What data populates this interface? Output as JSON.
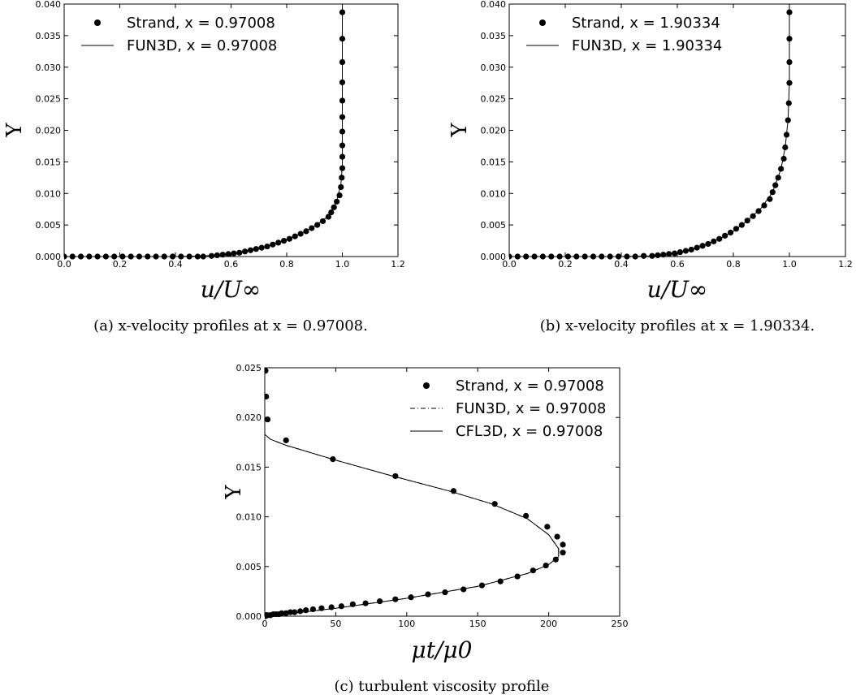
{
  "chart_data": [
    {
      "id": "a",
      "type": "scatter",
      "xlabel": "u/U∞",
      "ylabel": "Y",
      "xlim": [
        0,
        1.2
      ],
      "ylim": [
        0,
        0.04
      ],
      "xticks": [
        "0.0",
        "0.2",
        "0.4",
        "0.6",
        "0.8",
        "1.0",
        "1.2"
      ],
      "yticks": [
        "0.000",
        "0.005",
        "0.010",
        "0.015",
        "0.020",
        "0.025",
        "0.030",
        "0.035",
        "0.040"
      ],
      "legend_position": "top-left",
      "caption": "(a) x-velocity profiles at x = 0.97008.",
      "series": [
        {
          "name": "Strand, x = 0.97008",
          "style": "markers",
          "points": [
            [
              0.0,
              0.0
            ],
            [
              0.03,
              0.0
            ],
            [
              0.06,
              0.0
            ],
            [
              0.09,
              0.0
            ],
            [
              0.12,
              0.0
            ],
            [
              0.15,
              0.0
            ],
            [
              0.18,
              0.0
            ],
            [
              0.21,
              0.0
            ],
            [
              0.24,
              0.0
            ],
            [
              0.27,
              0.0
            ],
            [
              0.3,
              0.0
            ],
            [
              0.33,
              0.0
            ],
            [
              0.36,
              0.0
            ],
            [
              0.39,
              0.0
            ],
            [
              0.42,
              0.0
            ],
            [
              0.45,
              0.0
            ],
            [
              0.48,
              0.0
            ],
            [
              0.5,
              0.0
            ],
            [
              0.53,
              0.0001
            ],
            [
              0.55,
              0.0002
            ],
            [
              0.57,
              0.0003
            ],
            [
              0.59,
              0.0004
            ],
            [
              0.61,
              0.0005
            ],
            [
              0.63,
              0.0006
            ],
            [
              0.65,
              0.0008
            ],
            [
              0.67,
              0.001
            ],
            [
              0.69,
              0.0012
            ],
            [
              0.71,
              0.0014
            ],
            [
              0.73,
              0.0016
            ],
            [
              0.75,
              0.0019
            ],
            [
              0.77,
              0.0022
            ],
            [
              0.79,
              0.0025
            ],
            [
              0.81,
              0.0028
            ],
            [
              0.83,
              0.0032
            ],
            [
              0.85,
              0.0036
            ],
            [
              0.87,
              0.004
            ],
            [
              0.89,
              0.0045
            ],
            [
              0.91,
              0.005
            ],
            [
              0.93,
              0.0056
            ],
            [
              0.95,
              0.0063
            ],
            [
              0.96,
              0.007
            ],
            [
              0.97,
              0.0078
            ],
            [
              0.98,
              0.0087
            ],
            [
              0.99,
              0.0097
            ],
            [
              0.995,
              0.011
            ],
            [
              0.998,
              0.0125
            ],
            [
              1.0,
              0.014
            ],
            [
              1.0,
              0.0158
            ],
            [
              1.0,
              0.0176
            ],
            [
              1.0,
              0.0198
            ],
            [
              1.0,
              0.0221
            ],
            [
              1.0,
              0.0247
            ],
            [
              1.0,
              0.0276
            ],
            [
              1.0,
              0.0308
            ],
            [
              1.0,
              0.0345
            ],
            [
              1.0,
              0.0387
            ]
          ]
        },
        {
          "name": "FUN3D, x = 0.97008",
          "style": "solid",
          "points": [
            [
              0.0,
              0.0
            ],
            [
              0.4,
              0.0
            ],
            [
              0.5,
              0.0001
            ],
            [
              0.55,
              0.0002
            ],
            [
              0.6,
              0.0004
            ],
            [
              0.65,
              0.0008
            ],
            [
              0.7,
              0.0013
            ],
            [
              0.75,
              0.0019
            ],
            [
              0.8,
              0.0027
            ],
            [
              0.85,
              0.0036
            ],
            [
              0.9,
              0.0048
            ],
            [
              0.95,
              0.0064
            ],
            [
              0.98,
              0.0088
            ],
            [
              0.995,
              0.0115
            ],
            [
              1.0,
              0.0145
            ],
            [
              1.0,
              0.0165
            ],
            [
              1.0,
              0.04
            ]
          ]
        }
      ]
    },
    {
      "id": "b",
      "type": "scatter",
      "xlabel": "u/U∞",
      "ylabel": "Y",
      "xlim": [
        0,
        1.2
      ],
      "ylim": [
        0,
        0.04
      ],
      "xticks": [
        "0.0",
        "0.2",
        "0.4",
        "0.6",
        "0.8",
        "1.0",
        "1.2"
      ],
      "yticks": [
        "0.000",
        "0.005",
        "0.010",
        "0.015",
        "0.020",
        "0.025",
        "0.030",
        "0.035",
        "0.040"
      ],
      "legend_position": "top-left",
      "caption": "(b) x-velocity profiles at x = 1.90334.",
      "series": [
        {
          "name": "Strand, x = 1.90334",
          "style": "markers",
          "points": [
            [
              0.0,
              0.0
            ],
            [
              0.03,
              0.0
            ],
            [
              0.06,
              0.0
            ],
            [
              0.09,
              0.0
            ],
            [
              0.12,
              0.0
            ],
            [
              0.15,
              0.0
            ],
            [
              0.18,
              0.0
            ],
            [
              0.21,
              0.0
            ],
            [
              0.24,
              0.0
            ],
            [
              0.27,
              0.0
            ],
            [
              0.3,
              0.0
            ],
            [
              0.33,
              0.0
            ],
            [
              0.36,
              0.0
            ],
            [
              0.39,
              0.0
            ],
            [
              0.42,
              0.0
            ],
            [
              0.45,
              0.0
            ],
            [
              0.48,
              0.0001
            ],
            [
              0.51,
              0.0001
            ],
            [
              0.53,
              0.0002
            ],
            [
              0.55,
              0.0003
            ],
            [
              0.57,
              0.0004
            ],
            [
              0.59,
              0.0005
            ],
            [
              0.61,
              0.0007
            ],
            [
              0.63,
              0.0009
            ],
            [
              0.65,
              0.0011
            ],
            [
              0.67,
              0.0014
            ],
            [
              0.69,
              0.0017
            ],
            [
              0.71,
              0.002
            ],
            [
              0.73,
              0.0024
            ],
            [
              0.75,
              0.0028
            ],
            [
              0.77,
              0.0033
            ],
            [
              0.79,
              0.0038
            ],
            [
              0.81,
              0.0044
            ],
            [
              0.83,
              0.005
            ],
            [
              0.85,
              0.0057
            ],
            [
              0.87,
              0.0064
            ],
            [
              0.89,
              0.0072
            ],
            [
              0.91,
              0.0081
            ],
            [
              0.93,
              0.0091
            ],
            [
              0.94,
              0.0102
            ],
            [
              0.95,
              0.0113
            ],
            [
              0.96,
              0.0125
            ],
            [
              0.97,
              0.0139
            ],
            [
              0.98,
              0.0155
            ],
            [
              0.985,
              0.0173
            ],
            [
              0.99,
              0.0193
            ],
            [
              0.995,
              0.0216
            ],
            [
              0.998,
              0.0243
            ],
            [
              1.0,
              0.0275
            ],
            [
              1.0,
              0.0308
            ],
            [
              1.0,
              0.0345
            ],
            [
              1.0,
              0.0387
            ]
          ]
        },
        {
          "name": "FUN3D, x = 1.90334",
          "style": "solid",
          "points": [
            [
              0.0,
              0.0
            ],
            [
              0.4,
              0.0
            ],
            [
              0.5,
              0.0001
            ],
            [
              0.55,
              0.0003
            ],
            [
              0.6,
              0.0006
            ],
            [
              0.65,
              0.0011
            ],
            [
              0.7,
              0.0019
            ],
            [
              0.75,
              0.0028
            ],
            [
              0.8,
              0.004
            ],
            [
              0.85,
              0.0057
            ],
            [
              0.9,
              0.0077
            ],
            [
              0.94,
              0.0102
            ],
            [
              0.97,
              0.0139
            ],
            [
              0.985,
              0.0173
            ],
            [
              0.995,
              0.0216
            ],
            [
              1.0,
              0.0275
            ],
            [
              1.0,
              0.04
            ]
          ]
        }
      ]
    },
    {
      "id": "c",
      "type": "scatter",
      "xlabel": "μt/μ0",
      "ylabel": "Y",
      "xlim": [
        0,
        250
      ],
      "ylim": [
        0,
        0.025
      ],
      "xticks": [
        "0",
        "50",
        "100",
        "150",
        "200",
        "250"
      ],
      "yticks": [
        "0.000",
        "0.005",
        "0.010",
        "0.015",
        "0.020",
        "0.025"
      ],
      "legend_position": "top-right",
      "caption": "(c) turbulent viscosity profile",
      "series": [
        {
          "name": "Strand, x = 0.97008",
          "style": "markers",
          "points": [
            [
              0.5,
              0.0
            ],
            [
              1,
              0.0001
            ],
            [
              2,
              0.0001
            ],
            [
              4,
              0.0001
            ],
            [
              6,
              0.0002
            ],
            [
              8,
              0.0002
            ],
            [
              10,
              0.0002
            ],
            [
              12,
              0.0003
            ],
            [
              15,
              0.0003
            ],
            [
              18,
              0.0004
            ],
            [
              21,
              0.0004
            ],
            [
              25,
              0.0005
            ],
            [
              29,
              0.0006
            ],
            [
              34,
              0.0007
            ],
            [
              40,
              0.0008
            ],
            [
              47,
              0.0009
            ],
            [
              54,
              0.001
            ],
            [
              62,
              0.0012
            ],
            [
              71,
              0.0013
            ],
            [
              81,
              0.0015
            ],
            [
              92,
              0.0017
            ],
            [
              103,
              0.0019
            ],
            [
              115,
              0.0022
            ],
            [
              127,
              0.0024
            ],
            [
              140,
              0.0027
            ],
            [
              153,
              0.0031
            ],
            [
              166,
              0.0035
            ],
            [
              178,
              0.004
            ],
            [
              189,
              0.0046
            ],
            [
              198,
              0.0051
            ],
            [
              205,
              0.0057
            ],
            [
              210,
              0.0064
            ],
            [
              210,
              0.0072
            ],
            [
              206,
              0.008
            ],
            [
              199,
              0.009
            ],
            [
              184,
              0.0101
            ],
            [
              162,
              0.0113
            ],
            [
              133,
              0.0126
            ],
            [
              92,
              0.0141
            ],
            [
              48,
              0.0158
            ],
            [
              15,
              0.0177
            ],
            [
              2,
              0.0198
            ],
            [
              1,
              0.0221
            ],
            [
              0.5,
              0.0247
            ]
          ]
        },
        {
          "name": "FUN3D, x = 0.97008",
          "style": "dashdot",
          "points": [
            [
              0,
              0.0
            ],
            [
              20,
              0.0003
            ],
            [
              50,
              0.0008
            ],
            [
              100,
              0.0018
            ],
            [
              150,
              0.003
            ],
            [
              185,
              0.0043
            ],
            [
              200,
              0.0052
            ],
            [
              207,
              0.006
            ],
            [
              207,
              0.0068
            ],
            [
              200,
              0.0082
            ],
            [
              185,
              0.0098
            ],
            [
              160,
              0.0113
            ],
            [
              130,
              0.0126
            ],
            [
              90,
              0.0141
            ],
            [
              50,
              0.0157
            ],
            [
              15,
              0.0172
            ],
            [
              4,
              0.0178
            ],
            [
              0,
              0.0183
            ]
          ]
        },
        {
          "name": "CFL3D, x = 0.97008",
          "style": "solid",
          "points": [
            [
              0,
              0.0
            ],
            [
              20,
              0.0003
            ],
            [
              50,
              0.0008
            ],
            [
              100,
              0.0018
            ],
            [
              150,
              0.003
            ],
            [
              185,
              0.0043
            ],
            [
              200,
              0.0052
            ],
            [
              207,
              0.006
            ],
            [
              207,
              0.0068
            ],
            [
              200,
              0.0082
            ],
            [
              185,
              0.0098
            ],
            [
              160,
              0.0113
            ],
            [
              130,
              0.0126
            ],
            [
              90,
              0.0141
            ],
            [
              50,
              0.0157
            ],
            [
              15,
              0.0172
            ],
            [
              4,
              0.0178
            ],
            [
              0,
              0.0183
            ]
          ]
        }
      ]
    }
  ]
}
